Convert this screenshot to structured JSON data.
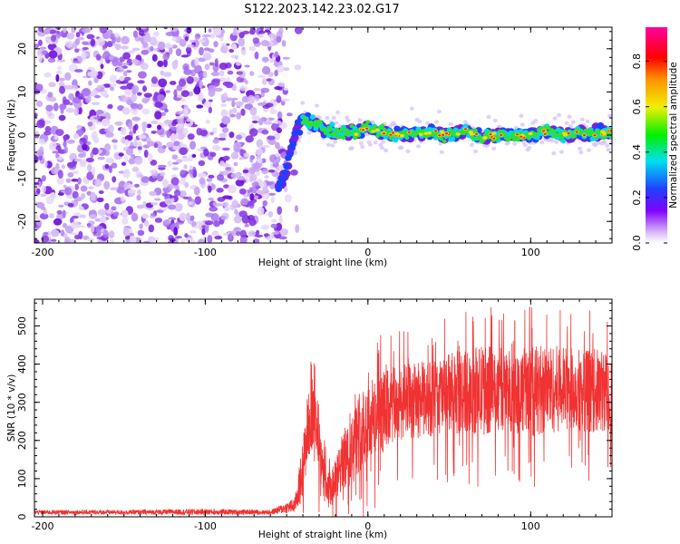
{
  "title": "S122.2023.142.23.02.G17",
  "colors": {
    "snr_line": "#f03232",
    "noise_purple": "#7a20e0",
    "axis": "#000000",
    "background": "#ffffff"
  },
  "chart_data": [
    {
      "type": "heatmap",
      "xlabel": "Height of straight line (km)",
      "ylabel": "Frequency (Hz)",
      "xlim": [
        -205,
        150
      ],
      "ylim": [
        -25,
        25
      ],
      "x_ticks": [
        -200,
        -100,
        0,
        100
      ],
      "y_ticks": [
        -20,
        -10,
        0,
        10,
        20
      ],
      "x_tick_labels": [
        "-200",
        "-100",
        "0",
        "100"
      ],
      "y_tick_labels": [
        "-20",
        "-10",
        "0",
        "10",
        "20"
      ],
      "grid": false,
      "colorbar": {
        "label": "Normalized spectral amplitude",
        "range": [
          0,
          0.95
        ],
        "ticks": [
          0.0,
          0.2,
          0.4,
          0.6,
          0.8
        ],
        "tick_labels": [
          "0.0",
          "0.2",
          "0.4",
          "0.6",
          "0.8"
        ],
        "colormap": "rainbow (white-purple-blue-cyan-green-yellow-red-magenta)"
      },
      "features": {
        "noise_region_x": [
          -205,
          -50
        ],
        "transition_x": [
          -50,
          -30
        ],
        "signal_trace": {
          "x": [
            -55,
            -50,
            -45,
            -40,
            -35,
            -30,
            -25,
            -20,
            -10,
            0,
            10,
            20,
            30,
            40,
            50,
            60,
            70,
            80,
            90,
            100,
            110,
            120,
            130,
            140,
            150
          ],
          "frequency": [
            -12,
            -8,
            0,
            4,
            3,
            2,
            1,
            0.5,
            0.5,
            1.5,
            0.5,
            0,
            0.5,
            0.5,
            0,
            1,
            -0.5,
            0,
            0,
            0,
            1,
            0,
            0.5,
            0.5,
            0.5
          ]
        }
      }
    },
    {
      "type": "line",
      "xlabel": "Height of straight line (km)",
      "ylabel": "SNR (10 * v/v)",
      "xlim": [
        -205,
        150
      ],
      "ylim": [
        0,
        570
      ],
      "x_ticks": [
        -200,
        -100,
        0,
        100
      ],
      "y_ticks": [
        0,
        100,
        200,
        300,
        400,
        500
      ],
      "x_tick_labels": [
        "-200",
        "-100",
        "0",
        "100"
      ],
      "y_tick_labels": [
        "0",
        "100",
        "200",
        "300",
        "400",
        "500"
      ],
      "grid": false,
      "series": [
        {
          "color": "#f03232",
          "envelope": {
            "x": [
              -205,
              -150,
              -100,
              -60,
              -45,
              -40,
              -37,
              -33,
              -30,
              -25,
              -20,
              -15,
              -10,
              -5,
              0,
              10,
              20,
              30,
              40,
              50,
              60,
              70,
              80,
              90,
              100,
              110,
              120,
              130,
              140,
              150
            ],
            "mean": [
              12,
              12,
              13,
              12,
              30,
              120,
              240,
              260,
              160,
              60,
              90,
              150,
              170,
              230,
              250,
              275,
              300,
              305,
              310,
              320,
              330,
              330,
              335,
              330,
              330,
              335,
              335,
              335,
              330,
              330
            ],
            "amp": [
              6,
              6,
              8,
              6,
              20,
              80,
              90,
              80,
              70,
              50,
              60,
              80,
              90,
              110,
              110,
              110,
              100,
              100,
              100,
              110,
              110,
              120,
              110,
              110,
              120,
              120,
              110,
              110,
              110,
              110
            ]
          }
        }
      ]
    }
  ]
}
